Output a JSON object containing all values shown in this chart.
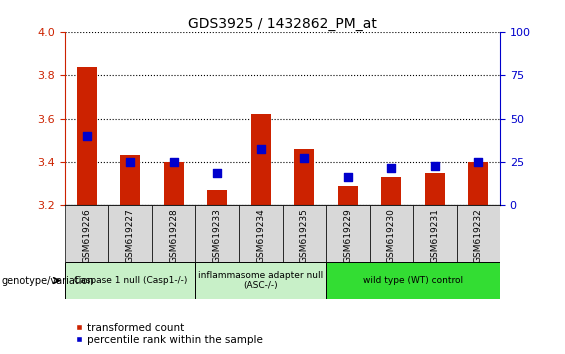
{
  "title": "GDS3925 / 1432862_PM_at",
  "samples": [
    "GSM619226",
    "GSM619227",
    "GSM619228",
    "GSM619233",
    "GSM619234",
    "GSM619235",
    "GSM619229",
    "GSM619230",
    "GSM619231",
    "GSM619232"
  ],
  "red_values": [
    3.84,
    3.43,
    3.4,
    3.27,
    3.62,
    3.46,
    3.29,
    3.33,
    3.35,
    3.4
  ],
  "blue_values": [
    3.52,
    3.4,
    3.4,
    3.35,
    3.46,
    3.42,
    3.33,
    3.37,
    3.38,
    3.4
  ],
  "ylim_left": [
    3.2,
    4.0
  ],
  "ylim_right": [
    0,
    100
  ],
  "yticks_left": [
    3.2,
    3.4,
    3.6,
    3.8,
    4.0
  ],
  "yticks_right": [
    0,
    25,
    50,
    75,
    100
  ],
  "groups": [
    {
      "label": "Caspase 1 null (Casp1-/-)",
      "color": "#c8f0c8",
      "indices": [
        0,
        1,
        2
      ]
    },
    {
      "label": "inflammasome adapter null\n(ASC-/-)",
      "color": "#c8f0c8",
      "indices": [
        3,
        4,
        5
      ]
    },
    {
      "label": "wild type (WT) control",
      "color": "#33dd33",
      "indices": [
        6,
        7,
        8,
        9
      ]
    }
  ],
  "bar_color": "#cc2200",
  "dot_color": "#0000cc",
  "left_axis_color": "#cc2200",
  "right_axis_color": "#0000cc",
  "sample_box_color": "#d8d8d8",
  "legend_red_label": "transformed count",
  "legend_blue_label": "percentile rank within the sample",
  "genotype_label": "genotype/variation"
}
